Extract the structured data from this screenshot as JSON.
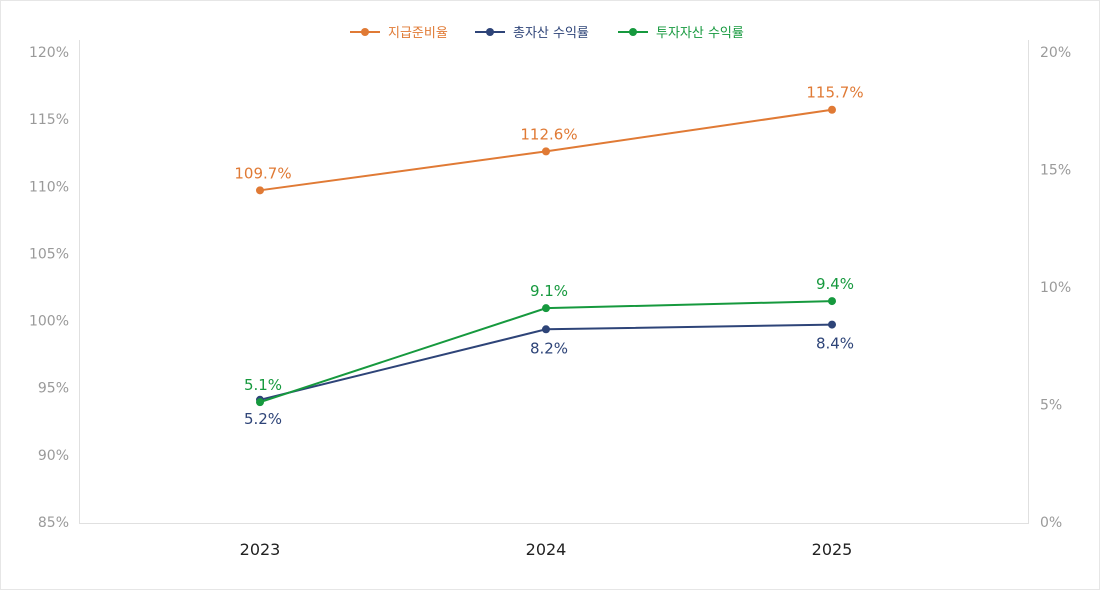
{
  "chart_data": {
    "type": "line",
    "categories": [
      "2023",
      "2024",
      "2025"
    ],
    "y_left": {
      "ylim": [
        85,
        120
      ],
      "ticks": [
        85,
        90,
        95,
        100,
        105,
        110,
        115,
        120
      ],
      "tick_labels": [
        "85%",
        "90%",
        "95%",
        "100%",
        "105%",
        "110%",
        "115%",
        "120%"
      ]
    },
    "y_right": {
      "ylim": [
        0,
        20
      ],
      "ticks": [
        0,
        5,
        10,
        15,
        20
      ],
      "tick_labels": [
        "0%",
        "5%",
        "10%",
        "15%",
        "20%"
      ]
    },
    "legend_position": "top-center",
    "series": [
      {
        "name": "지급준비율",
        "axis": "left",
        "color": "#e07a35",
        "values": [
          109.7,
          112.6,
          115.7
        ],
        "labels": [
          "109.7%",
          "112.6%",
          "115.7%"
        ],
        "label_position": "above"
      },
      {
        "name": "총자산 수익률",
        "axis": "right",
        "color": "#2e4478",
        "values": [
          5.2,
          8.2,
          8.4
        ],
        "labels": [
          "5.2%",
          "8.2%",
          "8.4%"
        ],
        "label_position": "below"
      },
      {
        "name": "투자자산 수익률",
        "axis": "right",
        "color": "#16993e",
        "values": [
          5.1,
          9.1,
          9.4
        ],
        "labels": [
          "5.1%",
          "9.1%",
          "9.4%"
        ],
        "label_position": "above"
      }
    ]
  }
}
